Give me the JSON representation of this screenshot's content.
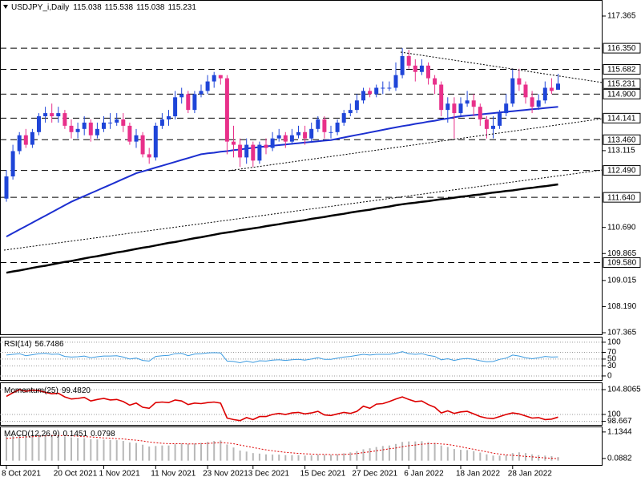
{
  "chart_data": [
    {
      "type": "candlestick",
      "title": "USDJPY_i,Daily",
      "categories": [
        "8 Oct 2021",
        null,
        null,
        null,
        null,
        null,
        null,
        null,
        "20 Oct 2021",
        null,
        null,
        null,
        null,
        null,
        null,
        "1 Nov 2021",
        null,
        null,
        null,
        null,
        null,
        null,
        null,
        "11 Nov 2021",
        null,
        null,
        null,
        null,
        null,
        null,
        null,
        "23 Nov 2021",
        null,
        null,
        null,
        null,
        null,
        null,
        "3 Dec 2021",
        null,
        null,
        null,
        null,
        null,
        null,
        null,
        "15 Dec 2021",
        null,
        null,
        null,
        null,
        null,
        null,
        null,
        "27 Dec 2021",
        null,
        null,
        null,
        null,
        null,
        null,
        null,
        "6 Jan 2022",
        null,
        null,
        null,
        null,
        null,
        null,
        null,
        "18 Jan 2022",
        null,
        null,
        null,
        null,
        null,
        null,
        null,
        "28 Jan 2022",
        null,
        null,
        null,
        null,
        null,
        null,
        null
      ],
      "open": [
        111.6,
        112.3,
        113.1,
        113.6,
        113.3,
        113.7,
        114.2,
        114.3,
        114.2,
        114.3,
        113.9,
        113.7,
        113.8,
        114.0,
        113.6,
        113.8,
        114.0,
        114.0,
        114.1,
        113.9,
        113.4,
        113.6,
        113.0,
        112.9,
        113.9,
        114.1,
        114.2,
        114.8,
        114.9,
        114.4,
        114.9,
        115.0,
        115.3,
        115.5,
        115.4,
        113.4,
        113.3,
        112.9,
        113.3,
        112.8,
        113.3,
        113.2,
        113.5,
        113.6,
        113.4,
        113.6,
        113.7,
        113.5,
        113.8,
        114.1,
        113.7,
        113.7,
        114.0,
        114.3,
        114.4,
        114.7,
        115.0,
        114.9,
        115.1,
        115.1,
        115.1,
        115.5,
        116.1,
        115.8,
        115.6,
        115.8,
        115.4,
        115.2,
        114.4,
        114.6,
        114.3,
        114.6,
        114.7,
        114.5,
        114.1,
        113.8,
        113.9,
        114.3,
        114.6,
        115.4,
        115.2,
        114.8,
        114.5,
        114.7,
        115.1,
        115.038
      ],
      "high": [
        112.5,
        113.3,
        113.7,
        113.8,
        113.8,
        114.3,
        114.5,
        114.6,
        114.5,
        114.4,
        114.1,
        114.0,
        114.2,
        114.1,
        114.0,
        114.2,
        114.3,
        114.3,
        114.3,
        114.0,
        113.8,
        113.7,
        113.2,
        114.0,
        114.3,
        114.4,
        115.0,
        115.1,
        115.0,
        115.0,
        115.2,
        115.5,
        115.6,
        115.5,
        115.5,
        113.9,
        113.5,
        113.5,
        113.4,
        113.4,
        113.5,
        113.7,
        113.8,
        113.7,
        113.8,
        113.9,
        113.9,
        114.0,
        114.2,
        114.2,
        113.9,
        114.1,
        114.4,
        114.6,
        114.9,
        115.1,
        115.1,
        115.2,
        115.3,
        115.3,
        115.9,
        116.35,
        116.3,
        116.0,
        116.0,
        115.9,
        115.5,
        115.3,
        114.8,
        114.8,
        114.8,
        115.0,
        114.9,
        114.6,
        114.2,
        114.2,
        114.4,
        114.9,
        115.7,
        115.7,
        115.3,
        115.0,
        114.9,
        115.3,
        115.4,
        115.538
      ],
      "low": [
        111.5,
        112.2,
        113.0,
        113.2,
        113.2,
        113.6,
        114.0,
        114.0,
        114.0,
        113.8,
        113.5,
        113.5,
        113.6,
        113.4,
        113.5,
        113.7,
        113.8,
        113.9,
        113.7,
        113.3,
        113.2,
        112.9,
        112.7,
        112.8,
        113.8,
        113.9,
        114.1,
        114.6,
        114.3,
        114.3,
        114.8,
        114.9,
        115.1,
        115.2,
        113.0,
        112.9,
        112.6,
        112.7,
        112.6,
        112.7,
        113.0,
        113.1,
        113.4,
        113.2,
        113.3,
        113.5,
        113.3,
        113.4,
        113.7,
        113.5,
        113.5,
        113.6,
        113.9,
        114.2,
        114.3,
        114.6,
        114.8,
        114.8,
        114.9,
        115.0,
        115.0,
        115.4,
        115.7,
        115.3,
        115.5,
        115.2,
        114.9,
        114.2,
        114.0,
        113.5,
        114.2,
        114.5,
        114.2,
        113.9,
        113.5,
        113.5,
        113.8,
        114.2,
        114.5,
        115.0,
        114.6,
        114.3,
        114.4,
        114.6,
        114.9,
        115.038
      ],
      "close": [
        112.3,
        113.1,
        113.6,
        113.3,
        113.7,
        114.2,
        114.3,
        114.2,
        114.3,
        113.9,
        113.7,
        113.8,
        114.0,
        113.6,
        113.8,
        114.0,
        114.0,
        114.1,
        113.9,
        113.4,
        113.6,
        113.0,
        112.9,
        113.9,
        114.1,
        114.2,
        114.8,
        114.9,
        114.4,
        114.9,
        115.0,
        115.3,
        115.5,
        115.4,
        113.4,
        113.3,
        112.9,
        113.3,
        112.8,
        113.3,
        113.2,
        113.5,
        113.6,
        113.4,
        113.6,
        113.7,
        113.5,
        113.8,
        114.1,
        113.7,
        113.7,
        114.0,
        114.3,
        114.4,
        114.7,
        115.0,
        114.9,
        115.1,
        115.1,
        115.1,
        115.5,
        116.1,
        115.8,
        115.6,
        115.8,
        115.4,
        115.2,
        114.4,
        114.6,
        114.3,
        114.6,
        114.7,
        114.5,
        114.1,
        113.8,
        113.9,
        114.3,
        114.6,
        115.4,
        115.2,
        114.8,
        114.5,
        114.7,
        115.1,
        115.0,
        115.231
      ],
      "up_color": "#1f45d8",
      "down_color": "#e8308a",
      "lines": [
        {
          "color": "#1c2fd0",
          "width": 2,
          "values": [
            110.4,
            110.51,
            110.62,
            110.73,
            110.84,
            110.95,
            111.06,
            111.17,
            111.28,
            111.39,
            111.5,
            111.59,
            111.68,
            111.77,
            111.86,
            111.95,
            112.04,
            112.13,
            112.22,
            112.31,
            112.4,
            112.46,
            112.52,
            112.58,
            112.64,
            112.7,
            112.76,
            112.82,
            112.88,
            112.94,
            113.0,
            113.03,
            113.05,
            113.08,
            113.1,
            113.13,
            113.15,
            113.18,
            113.2,
            113.23,
            113.25,
            113.27,
            113.29,
            113.31,
            113.33,
            113.35,
            113.37,
            113.39,
            113.41,
            113.43,
            113.45,
            113.49,
            113.53,
            113.57,
            113.61,
            113.65,
            113.69,
            113.73,
            113.77,
            113.81,
            113.85,
            113.89,
            113.92,
            113.96,
            113.99,
            114.03,
            114.06,
            114.1,
            114.13,
            114.17,
            114.2,
            114.22,
            114.24,
            114.26,
            114.28,
            114.3,
            114.32,
            114.34,
            114.36,
            114.38,
            114.4,
            114.42,
            114.44,
            114.46,
            114.48,
            114.5
          ]
        },
        {
          "color": "#000000",
          "width": 2.5,
          "values": [
            109.26,
            109.3,
            109.33,
            109.37,
            109.41,
            109.45,
            109.48,
            109.52,
            109.56,
            109.6,
            109.63,
            109.67,
            109.71,
            109.75,
            109.78,
            109.82,
            109.86,
            109.9,
            109.93,
            109.97,
            110.01,
            110.05,
            110.08,
            110.12,
            110.16,
            110.2,
            110.23,
            110.27,
            110.31,
            110.35,
            110.38,
            110.42,
            110.46,
            110.5,
            110.53,
            110.56,
            110.6,
            110.63,
            110.66,
            110.69,
            110.73,
            110.76,
            110.79,
            110.83,
            110.86,
            110.89,
            110.92,
            110.96,
            110.99,
            111.02,
            111.06,
            111.09,
            111.12,
            111.16,
            111.19,
            111.22,
            111.25,
            111.29,
            111.32,
            111.35,
            111.39,
            111.42,
            111.45,
            111.47,
            111.5,
            111.52,
            111.55,
            111.58,
            111.6,
            111.63,
            111.66,
            111.68,
            111.71,
            111.73,
            111.76,
            111.79,
            111.81,
            111.84,
            111.86,
            111.89,
            111.92,
            111.94,
            111.97,
            111.99,
            112.02,
            112.05
          ]
        }
      ],
      "levels": [
        {
          "value": 116.35,
          "label": "116.350"
        },
        115.682,
        {
          "value": 114.9,
          "label": "114.900"
        },
        114.141,
        {
          "value": 113.46,
          "label": "113.460"
        },
        {
          "value": 112.49,
          "label": "112.490"
        },
        {
          "value": 111.64,
          "label": "111.640"
        },
        {
          "value": 109.58,
          "label": "109.580"
        }
      ],
      "ylim": [
        107.315,
        117.821
      ],
      "yticks": [
        117.365,
        113.115,
        {
          "value": 110.69,
          "label": "110.690"
        },
        109.865,
        109.015,
        {
          "value": 108.19,
          "label": "108.190"
        },
        107.365
      ]
    },
    {
      "type": "line",
      "title": "RSI(14)",
      "color": "#3d9be0",
      "grid": true,
      "values": [
        62,
        64,
        66,
        60,
        63,
        66,
        67,
        64,
        65,
        58,
        56,
        57,
        59,
        54,
        57,
        59,
        59,
        60,
        56,
        50,
        53,
        46,
        44,
        58,
        60,
        61,
        66,
        67,
        60,
        65,
        66,
        68,
        69,
        68,
        44,
        43,
        39,
        44,
        40,
        45,
        44,
        47,
        48,
        46,
        48,
        49,
        47,
        50,
        54,
        49,
        49,
        53,
        56,
        58,
        61,
        64,
        62,
        64,
        64,
        64,
        67,
        72,
        66,
        64,
        66,
        61,
        58,
        48,
        51,
        46,
        50,
        52,
        49,
        45,
        42,
        43,
        49,
        53,
        62,
        59,
        54,
        51,
        54,
        58,
        56,
        56.7486
      ],
      "ylim": [
        -12,
        114
      ],
      "yticks": [
        100,
        70,
        50,
        30,
        0
      ]
    },
    {
      "type": "line",
      "title": "Momentum(25)",
      "last_value_label": "99.4820",
      "color": "#dd0000",
      "grid": true,
      "values": [
        103.5,
        104.2,
        104.8,
        104.5,
        104.7,
        104.6,
        104.3,
        104.0,
        104.1,
        103.4,
        103.0,
        103.1,
        103.3,
        102.6,
        102.9,
        103.1,
        102.8,
        102.9,
        102.5,
        101.8,
        102.2,
        101.4,
        101.2,
        102.3,
        102.4,
        102.3,
        102.8,
        102.6,
        101.9,
        102.2,
        102.1,
        102.3,
        102.4,
        102.2,
        99.3,
        99.0,
        98.8,
        99.4,
        99.0,
        99.6,
        99.6,
        100.0,
        100.2,
        100.0,
        100.3,
        100.4,
        100.1,
        100.3,
        100.6,
        99.9,
        99.8,
        100.1,
        100.4,
        100.2,
        100.6,
        101.6,
        101.2,
        102.0,
        102.1,
        102.5,
        103.0,
        103.4,
        102.9,
        102.5,
        102.6,
        101.9,
        101.4,
        100.3,
        100.7,
        100.2,
        100.5,
        100.6,
        100.1,
        99.6,
        99.3,
        99.2,
        99.6,
        100.0,
        100.3,
        100.1,
        99.7,
        99.3,
        99.4,
        99.0,
        99.1,
        99.482
      ],
      "ylim": [
        97.98,
        106.05
      ],
      "yticks": [
        104.8065,
        100,
        98.667
      ]
    },
    {
      "type": "macd",
      "title": "MACD(12,26,9)",
      "color": "#b8b8b8",
      "signal_color": "#dd0000",
      "values": [
        1.0,
        1.02,
        1.05,
        1.03,
        1.02,
        1.04,
        1.05,
        1.02,
        1.0,
        0.96,
        0.92,
        0.9,
        0.89,
        0.85,
        0.84,
        0.83,
        0.82,
        0.81,
        0.78,
        0.72,
        0.7,
        0.63,
        0.56,
        0.58,
        0.6,
        0.6,
        0.65,
        0.68,
        0.66,
        0.68,
        0.7,
        0.74,
        0.78,
        0.8,
        0.64,
        0.52,
        0.4,
        0.36,
        0.3,
        0.28,
        0.25,
        0.24,
        0.24,
        0.22,
        0.22,
        0.22,
        0.2,
        0.21,
        0.24,
        0.23,
        0.23,
        0.25,
        0.29,
        0.33,
        0.38,
        0.45,
        0.49,
        0.54,
        0.58,
        0.6,
        0.66,
        0.74,
        0.76,
        0.76,
        0.77,
        0.74,
        0.7,
        0.6,
        0.54,
        0.46,
        0.43,
        0.42,
        0.38,
        0.32,
        0.25,
        0.2,
        0.2,
        0.22,
        0.3,
        0.33,
        0.3,
        0.25,
        0.22,
        0.2,
        0.18,
        0.1451
      ],
      "signal": [
        0.88,
        0.9,
        0.92,
        0.94,
        0.95,
        0.97,
        0.98,
        0.99,
        0.99,
        0.99,
        0.98,
        0.97,
        0.95,
        0.94,
        0.92,
        0.9,
        0.89,
        0.87,
        0.86,
        0.83,
        0.81,
        0.78,
        0.74,
        0.71,
        0.69,
        0.67,
        0.67,
        0.67,
        0.66,
        0.66,
        0.67,
        0.68,
        0.7,
        0.72,
        0.7,
        0.67,
        0.62,
        0.57,
        0.52,
        0.47,
        0.43,
        0.39,
        0.36,
        0.33,
        0.31,
        0.29,
        0.27,
        0.26,
        0.25,
        0.25,
        0.24,
        0.24,
        0.25,
        0.26,
        0.28,
        0.32,
        0.35,
        0.39,
        0.43,
        0.47,
        0.5,
        0.55,
        0.59,
        0.62,
        0.65,
        0.67,
        0.68,
        0.66,
        0.64,
        0.6,
        0.55,
        0.5,
        0.45,
        0.4,
        0.35,
        0.3,
        0.26,
        0.23,
        0.21,
        0.19,
        0.17,
        0.15,
        0.13,
        0.11,
        0.095,
        0.0798
      ],
      "ylim": [
        -0.17,
        1.32
      ],
      "yticks": [
        1.1344,
        0.0882
      ]
    }
  ]
}
